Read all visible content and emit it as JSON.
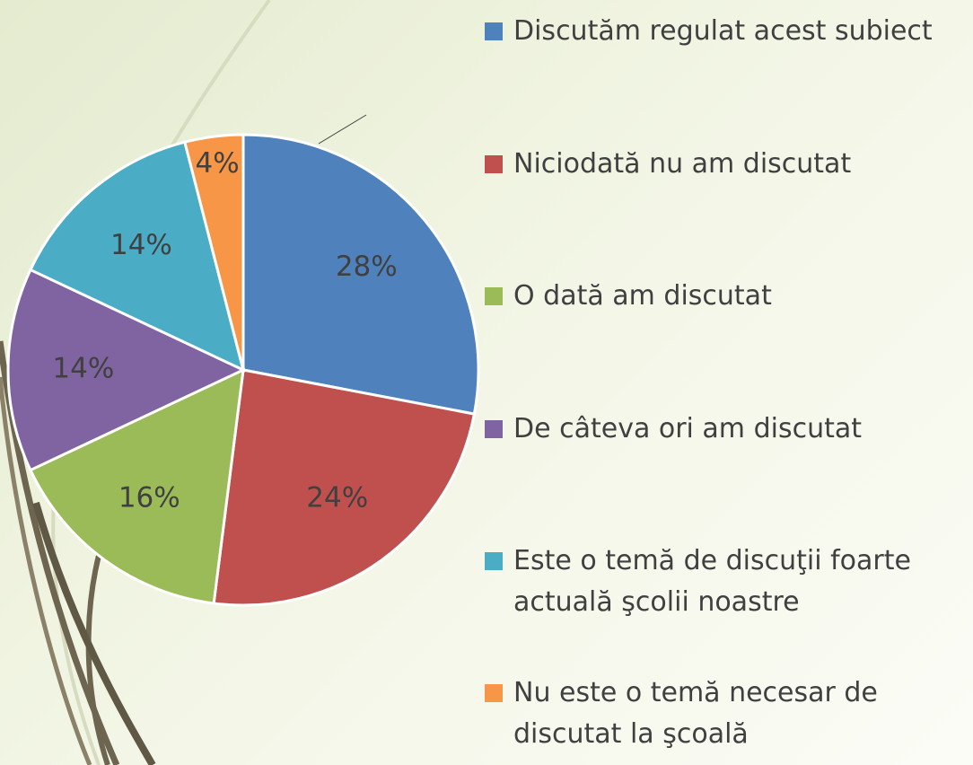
{
  "chart_data": {
    "type": "pie",
    "series": [
      {
        "name": "Discutăm regulat acest subiect",
        "color": "#4f81bd"
      },
      {
        "name": "Niciodată nu am discutat",
        "color": "#c0504d"
      },
      {
        "name": "O dată am discutat",
        "color": "#9bbb59"
      },
      {
        "name": "De câteva ori am discutat",
        "color": "#8064a2"
      },
      {
        "name": "Este o temă de discuţii foarte actuală şcolii noastre",
        "color": "#4bacc6"
      },
      {
        "name": "Nu este o temă necesar de discutat la şcoală",
        "color": "#f79646"
      }
    ],
    "values": [
      28,
      24,
      16,
      14,
      14,
      4
    ],
    "value_labels": [
      "28%",
      "24%",
      "16%",
      "14%",
      "14%",
      "4%"
    ],
    "legend": "right"
  }
}
